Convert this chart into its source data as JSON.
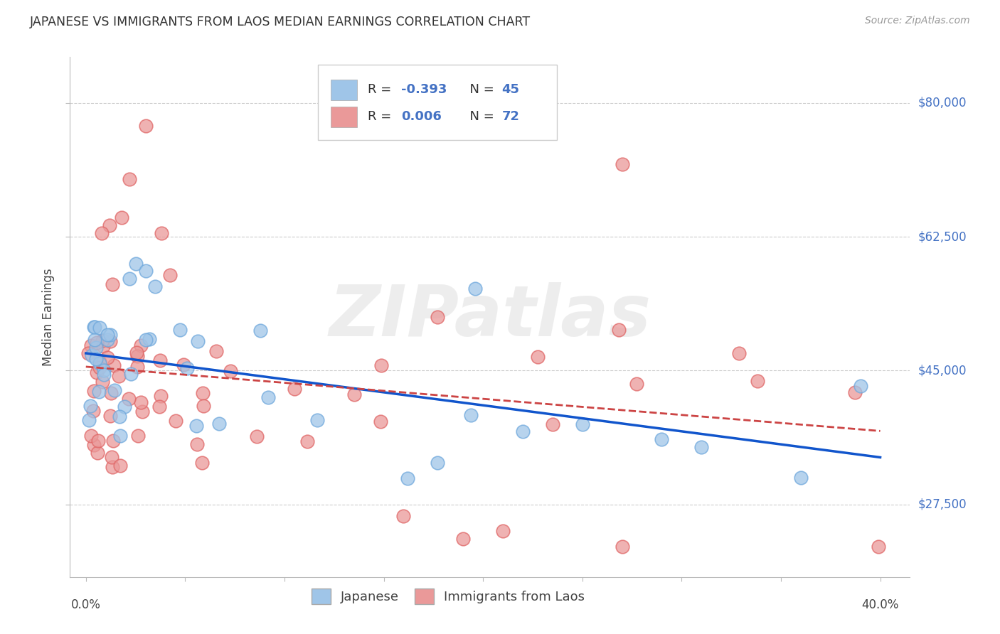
{
  "title": "JAPANESE VS IMMIGRANTS FROM LAOS MEDIAN EARNINGS CORRELATION CHART",
  "source": "Source: ZipAtlas.com",
  "ylabel": "Median Earnings",
  "y_ticks": [
    27500,
    45000,
    62500,
    80000
  ],
  "y_tick_labels": [
    "$27,500",
    "$45,000",
    "$62,500",
    "$80,000"
  ],
  "x_range": [
    0.0,
    0.4
  ],
  "y_range": [
    18000,
    86000
  ],
  "japanese_R": "-0.393",
  "japanese_N": "45",
  "laos_R": "0.006",
  "laos_N": "72",
  "japanese_color": "#9fc5e8",
  "laos_color": "#ea9999",
  "japanese_edge_color": "#6fa8dc",
  "laos_edge_color": "#e06666",
  "japanese_line_color": "#1155cc",
  "laos_line_color": "#cc4444",
  "legend_color": "#4472c4",
  "background_color": "#ffffff",
  "watermark": "ZIPatlas",
  "watermark_zip": "ZIP",
  "watermark_atlas": "atlas"
}
